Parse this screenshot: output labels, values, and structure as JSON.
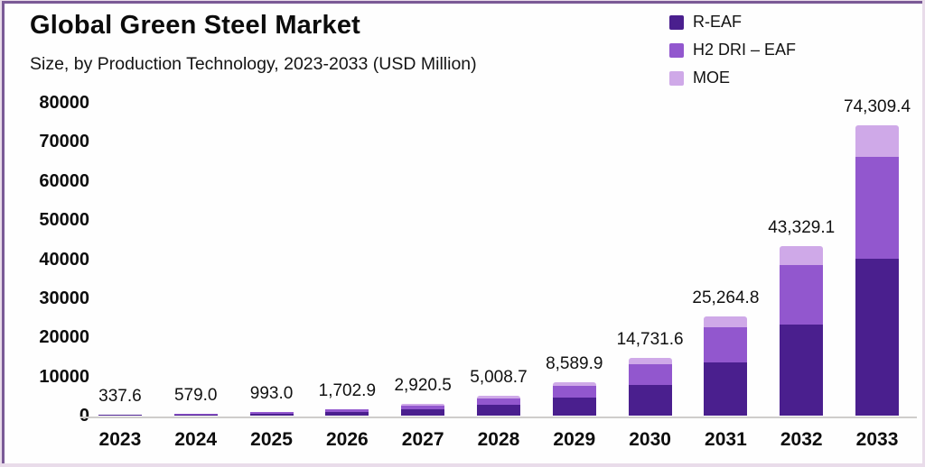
{
  "title": "Global Green Steel Market",
  "subtitle": "Size, by Production Technology, 2023-2033 (USD Million)",
  "legend": [
    {
      "label": "R-EAF",
      "color": "#4a1f8e"
    },
    {
      "label": "H2 DRI – EAF",
      "color": "#9257ce"
    },
    {
      "label": "MOE",
      "color": "#cfa9e8"
    }
  ],
  "colors": {
    "r_eaf": "#4a1f8e",
    "h2_dri_eaf": "#9257ce",
    "moe": "#cfa9e8",
    "border": "#7a5a96",
    "baseline": "#cfcdcb",
    "text": "#0d0d0d",
    "background": "#fefefe"
  },
  "chart_data": {
    "type": "bar",
    "stacked": true,
    "title": "Global Green Steel Market",
    "subtitle": "Size, by Production Technology, 2023-2033 (USD Million)",
    "xlabel": "",
    "ylabel": "USD Million",
    "ylim": [
      0,
      80000
    ],
    "yticks": [
      0,
      10000,
      20000,
      30000,
      40000,
      50000,
      60000,
      70000,
      80000
    ],
    "grid": false,
    "legend_position": "top-right",
    "categories": [
      "2023",
      "2024",
      "2025",
      "2026",
      "2027",
      "2028",
      "2029",
      "2030",
      "2031",
      "2032",
      "2033"
    ],
    "series": [
      {
        "name": "R-EAF",
        "color": "#4a1f8e",
        "values": [
          182.3,
          312.7,
          536.2,
          919.6,
          1577.1,
          2704.7,
          4638.5,
          7955.1,
          13643.0,
          23397.7,
          40127.1
        ]
      },
      {
        "name": "H2 DRI – EAF",
        "color": "#9257ce",
        "values": [
          118.2,
          202.7,
          347.6,
          596.0,
          1022.2,
          1753.0,
          3006.5,
          5156.1,
          8842.7,
          15165.2,
          26008.3
        ]
      },
      {
        "name": "MOE",
        "color": "#cfa9e8",
        "values": [
          37.1,
          63.6,
          109.2,
          187.3,
          321.2,
          551.0,
          944.9,
          1620.4,
          2779.1,
          4766.2,
          8174.0
        ]
      }
    ],
    "totals": [
      337.6,
      579.0,
      993.0,
      1702.9,
      2920.5,
      5008.7,
      8589.9,
      14731.6,
      25264.8,
      43329.1,
      74309.4
    ],
    "total_labels": [
      "337.6",
      "579.0",
      "993.0",
      "1,702.9",
      "2,920.5",
      "5,008.7",
      "8,589.9",
      "14,731.6",
      "25,264.8",
      "43,329.1",
      "74,309.4"
    ]
  }
}
